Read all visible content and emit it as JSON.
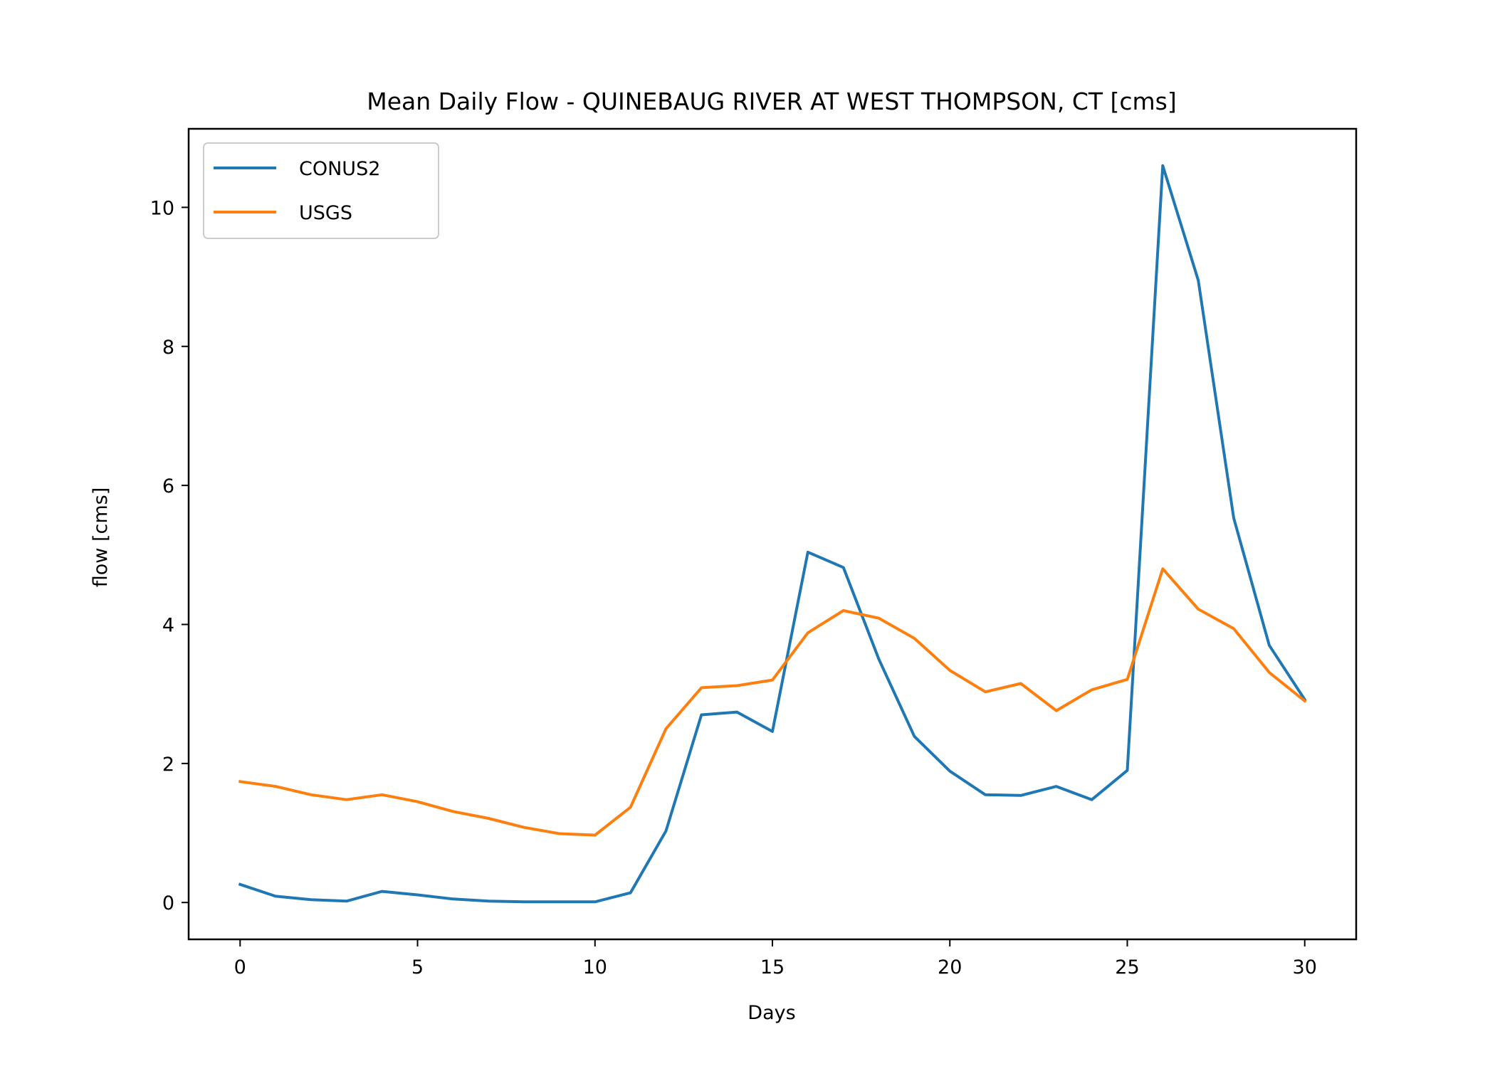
{
  "chart_data": {
    "type": "line",
    "title": "Mean Daily Flow - QUINEBAUG RIVER AT WEST THOMPSON, CT [cms]",
    "xlabel": "Days",
    "ylabel": "flow [cms]",
    "xlim": [
      -1.45,
      31.45
    ],
    "ylim": [
      -0.53,
      11.13
    ],
    "xticks": [
      0,
      5,
      10,
      15,
      20,
      25,
      30
    ],
    "yticks": [
      0,
      2,
      4,
      6,
      8,
      10
    ],
    "grid": false,
    "legend_position": "upper-left",
    "x": [
      0,
      1,
      2,
      3,
      4,
      5,
      6,
      7,
      8,
      9,
      10,
      11,
      12,
      13,
      14,
      15,
      16,
      17,
      18,
      19,
      20,
      21,
      22,
      23,
      24,
      25,
      26,
      27,
      28,
      29,
      30
    ],
    "series": [
      {
        "name": "CONUS2",
        "color": "#1f77b4",
        "values": [
          0.26,
          0.09,
          0.04,
          0.02,
          0.16,
          0.11,
          0.05,
          0.02,
          0.01,
          0.01,
          0.01,
          0.14,
          1.03,
          2.7,
          2.74,
          2.46,
          5.04,
          4.82,
          3.5,
          2.39,
          1.89,
          1.55,
          1.54,
          1.67,
          1.48,
          1.9,
          10.6,
          8.95,
          5.53,
          3.7,
          2.92
        ]
      },
      {
        "name": "USGS",
        "color": "#ff7f0e",
        "values": [
          1.74,
          1.67,
          1.55,
          1.48,
          1.55,
          1.45,
          1.31,
          1.21,
          1.08,
          0.99,
          0.97,
          1.37,
          2.5,
          3.09,
          3.12,
          3.2,
          3.88,
          4.2,
          4.09,
          3.8,
          3.34,
          3.03,
          3.15,
          2.76,
          3.06,
          3.21,
          4.8,
          4.22,
          3.94,
          3.31,
          2.9
        ]
      }
    ]
  }
}
